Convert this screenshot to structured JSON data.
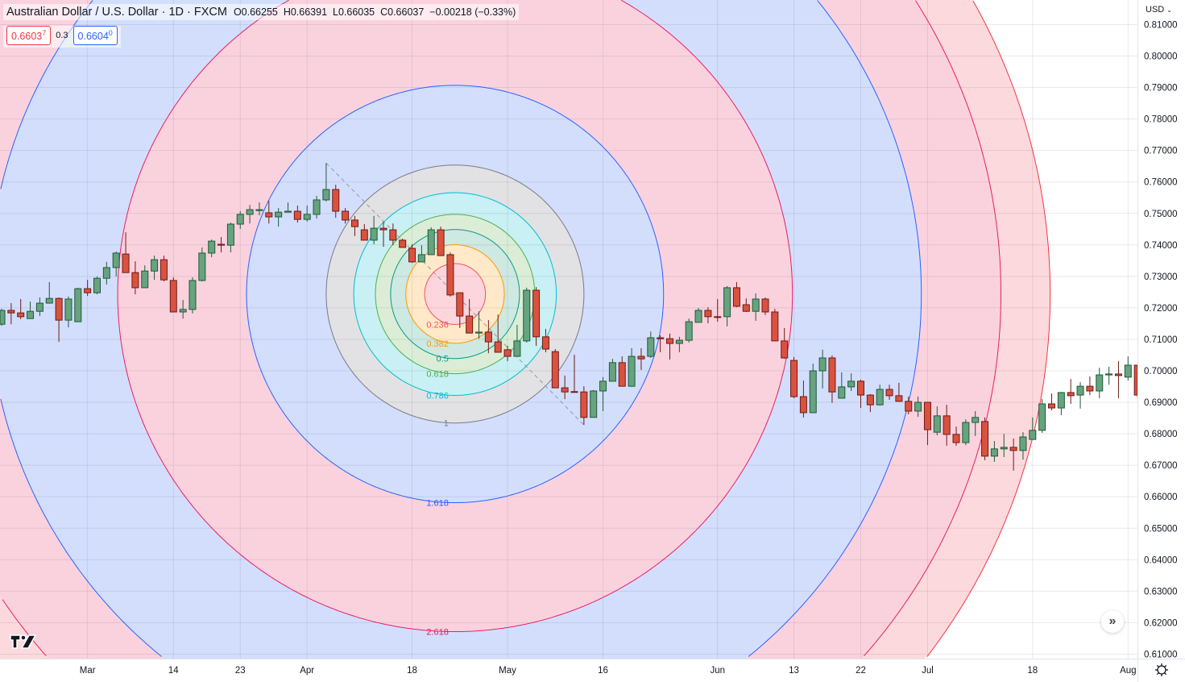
{
  "header": {
    "title": "Australian Dollar / U.S. Dollar · 1D · FXCM",
    "open": "O0.66255",
    "high": "H0.66391",
    "low": "L0.66035",
    "close": "C0.66037",
    "change": "−0.00218 (−0.33%)",
    "sell_price": "0.6603",
    "sell_price_fraction": "7",
    "spread": "0.3",
    "buy_price": "0.6604",
    "buy_price_fraction": "0"
  },
  "price_axis": {
    "currency": "USD",
    "currency_icon": "chevron-down-icon"
  },
  "controls": {
    "scroll_icon": "double-chevron-right-icon",
    "scroll_label": "»",
    "settings_icon": "gear-icon",
    "logo": "TV"
  },
  "colors": {
    "up": "#66a37e",
    "up_border": "#1f5a3b",
    "down": "#d95240",
    "down_border": "#6e1a14",
    "grid": "#e0e3eb"
  },
  "chart_data": {
    "type": "candlestick",
    "ylim": [
      0.605,
      0.8135
    ],
    "y_ticks": [
      "0.81000",
      "0.80000",
      "0.79000",
      "0.78000",
      "0.77000",
      "0.76000",
      "0.75000",
      "0.74000",
      "0.73000",
      "0.72000",
      "0.71000",
      "0.70000",
      "0.69000",
      "0.68000",
      "0.67000",
      "0.66000",
      "0.65000",
      "0.64000",
      "0.63000",
      "0.62000",
      "0.61000"
    ],
    "x_ticks": [
      {
        "label": "Mar",
        "date": "03-01"
      },
      {
        "label": "14",
        "date": "03-14"
      },
      {
        "label": "23",
        "date": "03-23"
      },
      {
        "label": "Apr",
        "date": "04-01"
      },
      {
        "label": "18",
        "date": "04-18"
      },
      {
        "label": "May",
        "date": "05-02"
      },
      {
        "label": "16",
        "date": "05-16"
      },
      {
        "label": "Jun",
        "date": "06-01"
      },
      {
        "label": "13",
        "date": "06-13"
      },
      {
        "label": "22",
        "date": "06-22"
      },
      {
        "label": "Jul",
        "date": "07-01"
      },
      {
        "label": "18",
        "date": "07-18"
      },
      {
        "label": "Aug",
        "date": "08-01"
      }
    ],
    "grid": true,
    "candles_columns": [
      "date",
      "open",
      "high",
      "low",
      "close"
    ],
    "candles": [
      [
        "02-16",
        0.7148,
        0.7197,
        0.7143,
        0.7192
      ],
      [
        "02-17",
        0.7192,
        0.7215,
        0.7148,
        0.7184
      ],
      [
        "02-18",
        0.7184,
        0.7228,
        0.7164,
        0.7172
      ],
      [
        "02-21",
        0.7166,
        0.722,
        0.7166,
        0.7189
      ],
      [
        "02-22",
        0.7189,
        0.7233,
        0.7174,
        0.7215
      ],
      [
        "02-23",
        0.7215,
        0.7282,
        0.7215,
        0.723
      ],
      [
        "02-24",
        0.723,
        0.7233,
        0.7092,
        0.7161
      ],
      [
        "02-25",
        0.7161,
        0.7236,
        0.7138,
        0.7228
      ],
      [
        "02-28",
        0.7156,
        0.7264,
        0.7156,
        0.7261
      ],
      [
        "03-01",
        0.7261,
        0.7289,
        0.7238,
        0.7248
      ],
      [
        "03-02",
        0.7248,
        0.73,
        0.7243,
        0.7294
      ],
      [
        "03-03",
        0.7294,
        0.7346,
        0.7274,
        0.7328
      ],
      [
        "03-04",
        0.7328,
        0.7379,
        0.73,
        0.7374
      ],
      [
        "03-07",
        0.7371,
        0.744,
        0.7312,
        0.7312
      ],
      [
        "03-08",
        0.7312,
        0.7348,
        0.7243,
        0.7264
      ],
      [
        "03-09",
        0.7264,
        0.7335,
        0.7264,
        0.7317
      ],
      [
        "03-10",
        0.7317,
        0.7366,
        0.7289,
        0.7353
      ],
      [
        "03-11",
        0.7353,
        0.7366,
        0.7284,
        0.7289
      ],
      [
        "03-14",
        0.7287,
        0.7297,
        0.7187,
        0.7187
      ],
      [
        "03-15",
        0.7187,
        0.7225,
        0.7166,
        0.7195
      ],
      [
        "03-16",
        0.7195,
        0.7297,
        0.7182,
        0.7287
      ],
      [
        "03-17",
        0.7287,
        0.7392,
        0.7284,
        0.7374
      ],
      [
        "03-18",
        0.7374,
        0.7417,
        0.7361,
        0.7412
      ],
      [
        "03-21",
        0.7402,
        0.7425,
        0.7376,
        0.7399
      ],
      [
        "03-22",
        0.7399,
        0.7471,
        0.7376,
        0.7466
      ],
      [
        "03-23",
        0.7466,
        0.7507,
        0.7451,
        0.7497
      ],
      [
        "03-24",
        0.7497,
        0.7527,
        0.7468,
        0.7512
      ],
      [
        "03-25",
        0.7509,
        0.7535,
        0.7494,
        0.7512
      ],
      [
        "03-28",
        0.7502,
        0.754,
        0.7468,
        0.7489
      ],
      [
        "03-29",
        0.7489,
        0.7517,
        0.7458,
        0.7504
      ],
      [
        "03-30",
        0.7504,
        0.7535,
        0.7504,
        0.7507
      ],
      [
        "03-31",
        0.7507,
        0.7525,
        0.7471,
        0.7481
      ],
      [
        "04-01",
        0.7481,
        0.7525,
        0.7474,
        0.7497
      ],
      [
        "04-04",
        0.7497,
        0.7556,
        0.7484,
        0.7543
      ],
      [
        "04-05",
        0.7543,
        0.766,
        0.7538,
        0.7576
      ],
      [
        "04-06",
        0.7576,
        0.7591,
        0.7486,
        0.7507
      ],
      [
        "04-07",
        0.7507,
        0.7517,
        0.7468,
        0.7479
      ],
      [
        "04-08",
        0.7479,
        0.7492,
        0.7428,
        0.7458
      ],
      [
        "04-11",
        0.7448,
        0.7466,
        0.7415,
        0.7415
      ],
      [
        "04-12",
        0.7415,
        0.7492,
        0.7402,
        0.7453
      ],
      [
        "04-13",
        0.7453,
        0.7474,
        0.7394,
        0.7448
      ],
      [
        "04-14",
        0.7448,
        0.7468,
        0.7399,
        0.7415
      ],
      [
        "04-15",
        0.7415,
        0.742,
        0.7392,
        0.7392
      ],
      [
        "04-18",
        0.7389,
        0.7402,
        0.7343,
        0.7346
      ],
      [
        "04-19",
        0.7346,
        0.7399,
        0.7346,
        0.7369
      ],
      [
        "04-20",
        0.7369,
        0.7456,
        0.7369,
        0.7448
      ],
      [
        "04-21",
        0.7448,
        0.7458,
        0.7366,
        0.7366
      ],
      [
        "04-22",
        0.7369,
        0.7376,
        0.7236,
        0.7241
      ],
      [
        "04-25",
        0.7248,
        0.7248,
        0.7136,
        0.7174
      ],
      [
        "04-26",
        0.7174,
        0.7228,
        0.712,
        0.712
      ],
      [
        "04-27",
        0.712,
        0.7189,
        0.7102,
        0.7123
      ],
      [
        "04-28",
        0.7123,
        0.7161,
        0.7056,
        0.7092
      ],
      [
        "04-29",
        0.7092,
        0.7179,
        0.7059,
        0.7059
      ],
      [
        "05-02",
        0.7067,
        0.7079,
        0.7031,
        0.7046
      ],
      [
        "05-03",
        0.7046,
        0.7146,
        0.7046,
        0.7095
      ],
      [
        "05-04",
        0.7095,
        0.7264,
        0.709,
        0.7256
      ],
      [
        "05-05",
        0.7256,
        0.7266,
        0.7079,
        0.7108
      ],
      [
        "05-06",
        0.7108,
        0.7133,
        0.7059,
        0.7069
      ],
      [
        "05-09",
        0.7061,
        0.7069,
        0.6946,
        0.6946
      ],
      [
        "05-10",
        0.6946,
        0.6985,
        0.691,
        0.6933
      ],
      [
        "05-11",
        0.6934,
        0.7051,
        0.6933,
        0.6933
      ],
      [
        "05-12",
        0.6933,
        0.6951,
        0.6828,
        0.6852
      ],
      [
        "05-13",
        0.6852,
        0.6939,
        0.6852,
        0.6936
      ],
      [
        "05-16",
        0.6936,
        0.698,
        0.6872,
        0.6967
      ],
      [
        "05-17",
        0.6967,
        0.7038,
        0.6967,
        0.7026
      ],
      [
        "05-18",
        0.7026,
        0.7046,
        0.6951,
        0.6951
      ],
      [
        "05-19",
        0.6951,
        0.7072,
        0.6951,
        0.7046
      ],
      [
        "05-20",
        0.7046,
        0.7072,
        0.7003,
        0.7038
      ],
      [
        "05-23",
        0.7046,
        0.7125,
        0.7041,
        0.7105
      ],
      [
        "05-24",
        0.7105,
        0.7113,
        0.7059,
        0.7102
      ],
      [
        "05-25",
        0.7102,
        0.7118,
        0.7036,
        0.7087
      ],
      [
        "05-26",
        0.7087,
        0.7108,
        0.7059,
        0.7097
      ],
      [
        "05-27",
        0.7097,
        0.7166,
        0.709,
        0.7156
      ],
      [
        "05-30",
        0.7154,
        0.72,
        0.7154,
        0.7192
      ],
      [
        "05-31",
        0.7192,
        0.7202,
        0.7151,
        0.7172
      ],
      [
        "06-01",
        0.7172,
        0.7228,
        0.7156,
        0.7171
      ],
      [
        "06-02",
        0.7172,
        0.7269,
        0.7141,
        0.7264
      ],
      [
        "06-03",
        0.7264,
        0.7282,
        0.7202,
        0.7205
      ],
      [
        "06-06",
        0.721,
        0.723,
        0.7187,
        0.7189
      ],
      [
        "06-07",
        0.7189,
        0.7246,
        0.7159,
        0.7228
      ],
      [
        "06-08",
        0.7228,
        0.7233,
        0.7177,
        0.7187
      ],
      [
        "06-09",
        0.7187,
        0.7197,
        0.7095,
        0.7095
      ],
      [
        "06-10",
        0.7095,
        0.7136,
        0.7038,
        0.7041
      ],
      [
        "06-13",
        0.7033,
        0.7044,
        0.6913,
        0.6918
      ],
      [
        "06-14",
        0.6918,
        0.6969,
        0.6852,
        0.6867
      ],
      [
        "06-15",
        0.6867,
        0.7023,
        0.6867,
        0.7
      ],
      [
        "06-16",
        0.7,
        0.7067,
        0.6944,
        0.7041
      ],
      [
        "06-17",
        0.7041,
        0.7049,
        0.6898,
        0.6933
      ],
      [
        "06-20",
        0.6913,
        0.6995,
        0.6913,
        0.6949
      ],
      [
        "06-21",
        0.6949,
        0.6992,
        0.6936,
        0.6967
      ],
      [
        "06-22",
        0.6967,
        0.6972,
        0.6882,
        0.6923
      ],
      [
        "06-23",
        0.6923,
        0.6926,
        0.6869,
        0.6892
      ],
      [
        "06-24",
        0.6892,
        0.6956,
        0.689,
        0.6941
      ],
      [
        "06-27",
        0.6941,
        0.6956,
        0.6908,
        0.6921
      ],
      [
        "06-28",
        0.6921,
        0.6962,
        0.6903,
        0.6903
      ],
      [
        "06-29",
        0.6903,
        0.6918,
        0.6862,
        0.6872
      ],
      [
        "06-30",
        0.6872,
        0.6918,
        0.6854,
        0.69
      ],
      [
        "07-01",
        0.69,
        0.69,
        0.6764,
        0.6813
      ],
      [
        "07-04",
        0.6805,
        0.6887,
        0.6795,
        0.6857
      ],
      [
        "07-05",
        0.6857,
        0.6892,
        0.6762,
        0.6798
      ],
      [
        "07-06",
        0.6798,
        0.6823,
        0.6762,
        0.6772
      ],
      [
        "07-07",
        0.6772,
        0.6846,
        0.6764,
        0.6836
      ],
      [
        "07-08",
        0.6836,
        0.6872,
        0.6793,
        0.6852
      ],
      [
        "07-11",
        0.6839,
        0.6852,
        0.6716,
        0.6729
      ],
      [
        "07-12",
        0.6729,
        0.6777,
        0.6711,
        0.6752
      ],
      [
        "07-13",
        0.6752,
        0.68,
        0.6726,
        0.6757
      ],
      [
        "07-14",
        0.6757,
        0.6785,
        0.6683,
        0.6747
      ],
      [
        "07-15",
        0.6747,
        0.6805,
        0.6718,
        0.679
      ],
      [
        "07-18",
        0.6782,
        0.6852,
        0.6782,
        0.6811
      ],
      [
        "07-19",
        0.6811,
        0.691,
        0.6803,
        0.6895
      ],
      [
        "07-20",
        0.6895,
        0.6928,
        0.6875,
        0.6882
      ],
      [
        "07-21",
        0.6882,
        0.6933,
        0.6859,
        0.6931
      ],
      [
        "07-22",
        0.6931,
        0.6974,
        0.6895,
        0.6921
      ],
      [
        "07-25",
        0.6923,
        0.6964,
        0.688,
        0.6951
      ],
      [
        "07-26",
        0.6951,
        0.6982,
        0.6923,
        0.6936
      ],
      [
        "07-27",
        0.6936,
        0.701,
        0.6913,
        0.6987
      ],
      [
        "07-28",
        0.6987,
        0.7013,
        0.6956,
        0.699
      ],
      [
        "07-29",
        0.699,
        0.7031,
        0.6913,
        0.6985
      ],
      [
        "08-01",
        0.698,
        0.7046,
        0.6969,
        0.7018
      ],
      [
        "08-02",
        0.7018,
        0.7018,
        0.6916,
        0.6923
      ]
    ],
    "fib_circles": {
      "anchors": [
        {
          "date": "04-05",
          "price": 0.766
        },
        {
          "date": "05-12",
          "price": 0.6828
        }
      ],
      "levels": [
        {
          "level": "0.236",
          "value": 0.236,
          "line": "#f7525f",
          "fill": "#fdd5dc",
          "show_label": true
        },
        {
          "level": "0.382",
          "value": 0.382,
          "line": "#ff9800",
          "fill": "#ffe9c9",
          "show_label": true
        },
        {
          "level": "0.5",
          "value": 0.5,
          "line": "#089981",
          "fill": "#cde9e2",
          "show_label": true
        },
        {
          "level": "0.618",
          "value": 0.618,
          "line": "#4caf50",
          "fill": "#dcedd7",
          "show_label": true
        },
        {
          "level": "0.786",
          "value": 0.786,
          "line": "#00bcd4",
          "fill": "#c9f0f4",
          "show_label": true
        },
        {
          "level": "1",
          "value": 1,
          "line": "#787b86",
          "fill": "#e2e2e4",
          "show_label": true
        },
        {
          "level": "1.618",
          "value": 1.618,
          "line": "#2962ff",
          "fill": "#d3defd",
          "show_label": true
        },
        {
          "level": "2.618",
          "value": 2.618,
          "line": "#e91e63",
          "fill": "#fad2de",
          "show_label": true
        },
        {
          "level": "3.618",
          "value": 3.618,
          "line": "#2962ff",
          "fill": "#d3defd",
          "show_label": false
        },
        {
          "level": "4.236",
          "value": 4.236,
          "line": "#e91e63",
          "fill": "#fad2de",
          "show_label": false
        },
        {
          "level": "4.618",
          "value": 4.618,
          "line": "#f23645",
          "fill": "#fcd9dc",
          "show_label": false
        }
      ]
    }
  }
}
